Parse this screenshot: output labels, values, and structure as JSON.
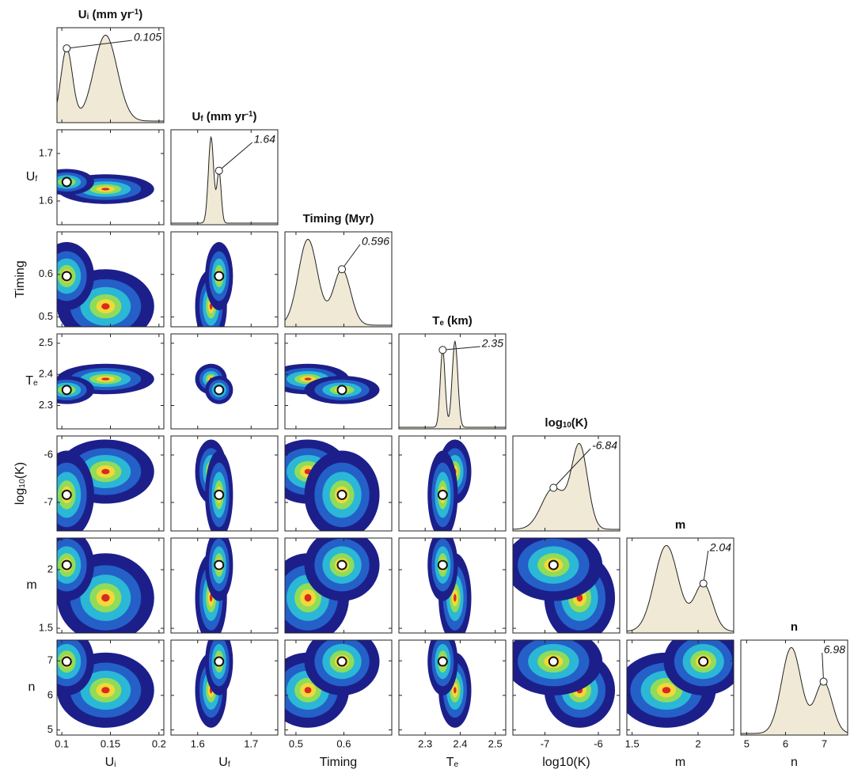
{
  "chart_data": {
    "type": "corner",
    "params": [
      {
        "title": [
          [
            "U",
            "normal"
          ],
          [
            "i",
            "sub"
          ],
          [
            " (mm yr",
            "normal"
          ],
          [
            "-1",
            "sup"
          ],
          [
            ")",
            "normal"
          ]
        ],
        "xlabel": [
          [
            "U",
            "normal"
          ],
          [
            "i",
            "sub"
          ]
        ],
        "lim": [
          0.095,
          0.205
        ],
        "ticks": [
          0.1,
          0.15,
          0.2
        ],
        "best": 0.105,
        "alt": 0.145,
        "spread": [
          0.006,
          0.012
        ],
        "weights": [
          0.8,
          0.95
        ]
      },
      {
        "title": [
          [
            "U",
            "normal"
          ],
          [
            "f",
            "sub"
          ],
          [
            " (mm yr",
            "normal"
          ],
          [
            "-1",
            "sup"
          ],
          [
            ")",
            "normal"
          ]
        ],
        "xlabel": [
          [
            "U",
            "normal"
          ],
          [
            "f",
            "sub"
          ]
        ],
        "ylabel": [
          [
            "U",
            "normal"
          ],
          [
            "f",
            "sub"
          ]
        ],
        "lim": [
          1.55,
          1.75
        ],
        "ticks": [
          1.6,
          1.7
        ],
        "best": 1.64,
        "alt": 1.625,
        "spread": [
          0.004,
          0.005
        ],
        "weights": [
          0.6,
          1.0
        ]
      },
      {
        "title": [
          [
            "Timing (Myr)",
            "normal"
          ]
        ],
        "xlabel": [
          [
            "Timing",
            "normal"
          ]
        ],
        "ylabel": [
          [
            "Timing",
            "normal"
          ]
        ],
        "lim": [
          0.477,
          0.7
        ],
        "ticks": [
          0.5,
          0.6
        ],
        "best": 0.596,
        "alt": 0.525,
        "spread": [
          0.018,
          0.02
        ],
        "weights": [
          0.65,
          1.0
        ]
      },
      {
        "title": [
          [
            "T",
            "normal"
          ],
          [
            "e",
            "sub"
          ],
          [
            " (km)",
            "normal"
          ]
        ],
        "xlabel": [
          [
            "T",
            "normal"
          ],
          [
            "e",
            "sub"
          ]
        ],
        "ylabel": [
          [
            "T",
            "normal"
          ],
          [
            "e",
            "sub"
          ]
        ],
        "lim": [
          2.225,
          2.53
        ],
        "ticks": [
          2.3,
          2.4,
          2.5
        ],
        "best": 2.35,
        "alt": 2.385,
        "spread": [
          0.007,
          0.008
        ],
        "weights": [
          0.9,
          1.0
        ]
      },
      {
        "title": [
          [
            "log",
            "normal"
          ],
          [
            "10",
            "sub"
          ],
          [
            "(K)",
            "normal"
          ]
        ],
        "xlabel": [
          [
            "log10(K)",
            "normal"
          ]
        ],
        "ylabel": [
          [
            "log",
            "normal"
          ],
          [
            "10",
            "sub"
          ],
          [
            "(K)",
            "normal"
          ]
        ],
        "lim": [
          -7.6,
          -5.6
        ],
        "ticks": [
          -7,
          -6
        ],
        "best": -6.84,
        "alt": -6.35,
        "spread": [
          0.22,
          0.15
        ],
        "weights": [
          0.5,
          1.0
        ]
      },
      {
        "title": [
          [
            "m",
            "normal"
          ]
        ],
        "xlabel": [
          [
            "m",
            "normal"
          ]
        ],
        "ylabel": [
          [
            "m",
            "normal"
          ]
        ],
        "lim": [
          1.46,
          2.27
        ],
        "ticks": [
          1.5,
          2
        ],
        "best": 2.04,
        "alt": 1.76,
        "spread": [
          0.07,
          0.09
        ],
        "weights": [
          0.55,
          1.0
        ]
      },
      {
        "title": [
          [
            "n",
            "normal"
          ]
        ],
        "xlabel": [
          [
            "n",
            "normal"
          ]
        ],
        "ylabel": [
          [
            "n",
            "normal"
          ]
        ],
        "lim": [
          4.85,
          7.6
        ],
        "ticks": [
          5,
          6,
          7
        ],
        "best": 6.98,
        "alt": 6.15,
        "spread": [
          0.22,
          0.25
        ],
        "weights": [
          0.6,
          1.0
        ]
      }
    ]
  }
}
